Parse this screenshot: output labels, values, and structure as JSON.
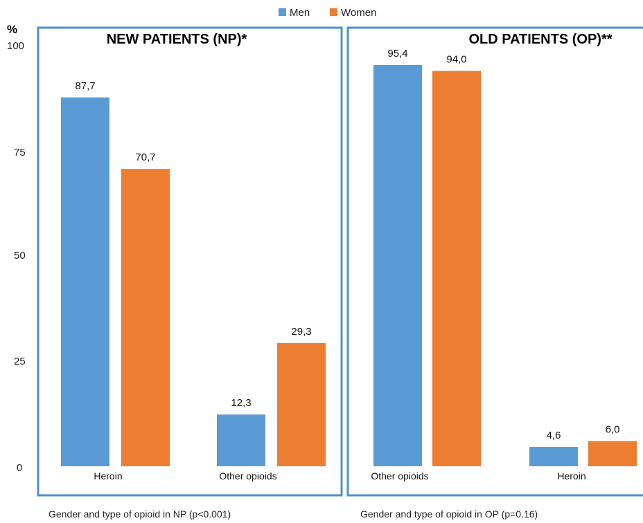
{
  "chart_data": [
    {
      "type": "bar",
      "title": "NEW PATIENTS (NP)*",
      "caption": "Gender and type of opioid in NP (p<0.001)",
      "categories": [
        "Heroin",
        "Other opioids"
      ],
      "series": [
        {
          "name": "Men",
          "values": [
            87.7,
            12.3
          ],
          "labels": [
            "87,7",
            "12,3"
          ]
        },
        {
          "name": "Women",
          "values": [
            70.7,
            29.3
          ],
          "labels": [
            "70,7",
            "29,3"
          ]
        }
      ],
      "ylabel": "%",
      "ylim": [
        0,
        100
      ]
    },
    {
      "type": "bar",
      "title": "OLD PATIENTS (OP)**",
      "caption": "Gender and type of opioid in OP (p=0.16)",
      "categories": [
        "Other opioids",
        "Heroin"
      ],
      "series": [
        {
          "name": "Men",
          "values": [
            95.4,
            4.6
          ],
          "labels": [
            "95,4",
            "4,6"
          ]
        },
        {
          "name": "Women",
          "values": [
            94.0,
            6.0
          ],
          "labels": [
            "94,0",
            "6,0"
          ]
        }
      ],
      "ylabel": "%",
      "ylim": [
        0,
        100
      ]
    }
  ],
  "axis": {
    "unit": "%",
    "ticks": [
      "100",
      "75",
      "50",
      "25",
      "0"
    ],
    "tick_values": [
      100,
      75,
      50,
      25,
      0
    ]
  },
  "legend": {
    "placement": "top-center",
    "items": [
      {
        "label": "Men",
        "color": "#5B9BD5"
      },
      {
        "label": "Women",
        "color": "#ED7D31"
      }
    ]
  },
  "colors": {
    "men": "#5B9BD5",
    "women": "#ED7D31",
    "panel_border": "#4A90D0"
  }
}
